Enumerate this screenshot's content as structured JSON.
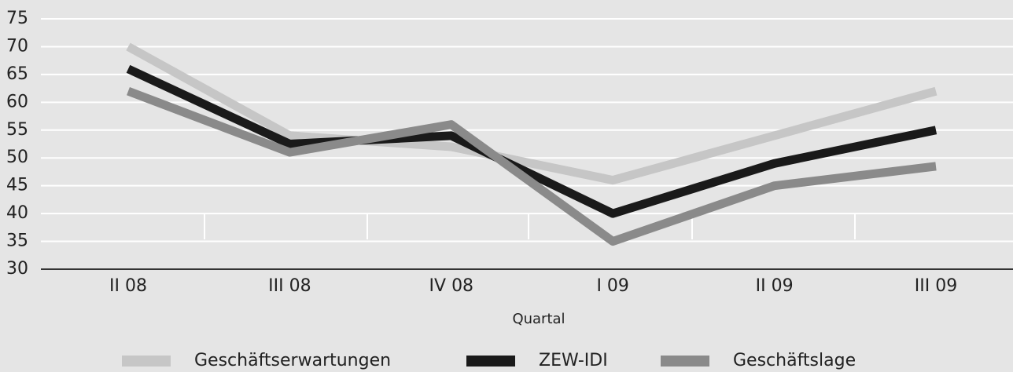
{
  "chart_data": {
    "type": "line",
    "categories": [
      "II 08",
      "III 08",
      "IV 08",
      "I 09",
      "II 09",
      "III 09"
    ],
    "x_label": "Quartal",
    "series": [
      {
        "name": "Geschäftserwartungen",
        "color": "#c6c6c6",
        "values": [
          70,
          54,
          52,
          46,
          54,
          62
        ]
      },
      {
        "name": "ZEW-IDI",
        "color": "#1a1a1a",
        "values": [
          66,
          52.5,
          54,
          40,
          49,
          55
        ]
      },
      {
        "name": "Geschäftslage",
        "color": "#8a8a8a",
        "values": [
          62,
          51,
          56,
          35,
          45,
          48.5
        ]
      }
    ],
    "ylim": [
      30,
      75
    ],
    "yticks": [
      30,
      35,
      40,
      45,
      50,
      55,
      60,
      65,
      70,
      75
    ],
    "grid": true
  }
}
